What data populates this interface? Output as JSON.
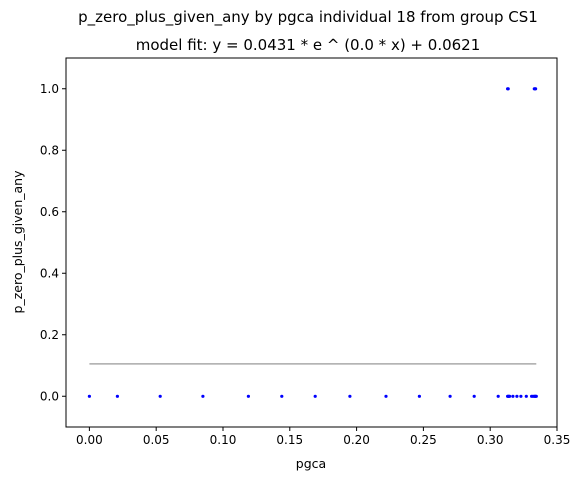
{
  "chart_data": {
    "type": "scatter",
    "title": "p_zero_plus_given_any by pgca individual 18 from group CS1",
    "subtitle": "model fit: y = 0.0431 * e ^ (0.0 * x) + 0.0621",
    "xlabel": "pgca",
    "ylabel": "p_zero_plus_given_any",
    "xlim": [
      -0.0175,
      0.35
    ],
    "ylim": [
      -0.1,
      1.1
    ],
    "x_ticks": [
      "0.00",
      "0.05",
      "0.10",
      "0.15",
      "0.20",
      "0.25",
      "0.30",
      "0.35"
    ],
    "y_ticks": [
      "0.0",
      "0.2",
      "0.4",
      "0.6",
      "0.8",
      "1.0"
    ],
    "grid": false,
    "series": [
      {
        "color": "#0000ff",
        "marker": "dot",
        "points": [
          [
            0.0,
            0.0
          ],
          [
            0.021,
            0.0
          ],
          [
            0.053,
            0.0
          ],
          [
            0.085,
            0.0
          ],
          [
            0.119,
            0.0
          ],
          [
            0.144,
            0.0
          ],
          [
            0.169,
            0.0
          ],
          [
            0.195,
            0.0
          ],
          [
            0.222,
            0.0
          ],
          [
            0.247,
            0.0
          ],
          [
            0.27,
            0.0
          ],
          [
            0.288,
            0.0
          ],
          [
            0.306,
            0.0
          ],
          [
            0.313,
            0.0
          ],
          [
            0.3135,
            0.0
          ],
          [
            0.314,
            0.0
          ],
          [
            0.3145,
            0.0
          ],
          [
            0.317,
            0.0
          ],
          [
            0.32,
            0.0
          ],
          [
            0.323,
            0.0
          ],
          [
            0.327,
            0.0
          ],
          [
            0.331,
            0.0
          ],
          [
            0.332,
            0.0
          ],
          [
            0.333,
            0.0
          ],
          [
            0.3335,
            0.0
          ],
          [
            0.334,
            0.0
          ],
          [
            0.3345,
            0.0
          ],
          [
            0.313,
            1.0
          ],
          [
            0.3135,
            1.0
          ],
          [
            0.333,
            1.0
          ],
          [
            0.3335,
            1.0
          ],
          [
            0.334,
            1.0
          ]
        ]
      },
      {
        "color": "#aaaaaa",
        "type": "line",
        "x": [
          0.0,
          0.3345
        ],
        "y": [
          0.1052,
          0.1052
        ]
      }
    ]
  }
}
